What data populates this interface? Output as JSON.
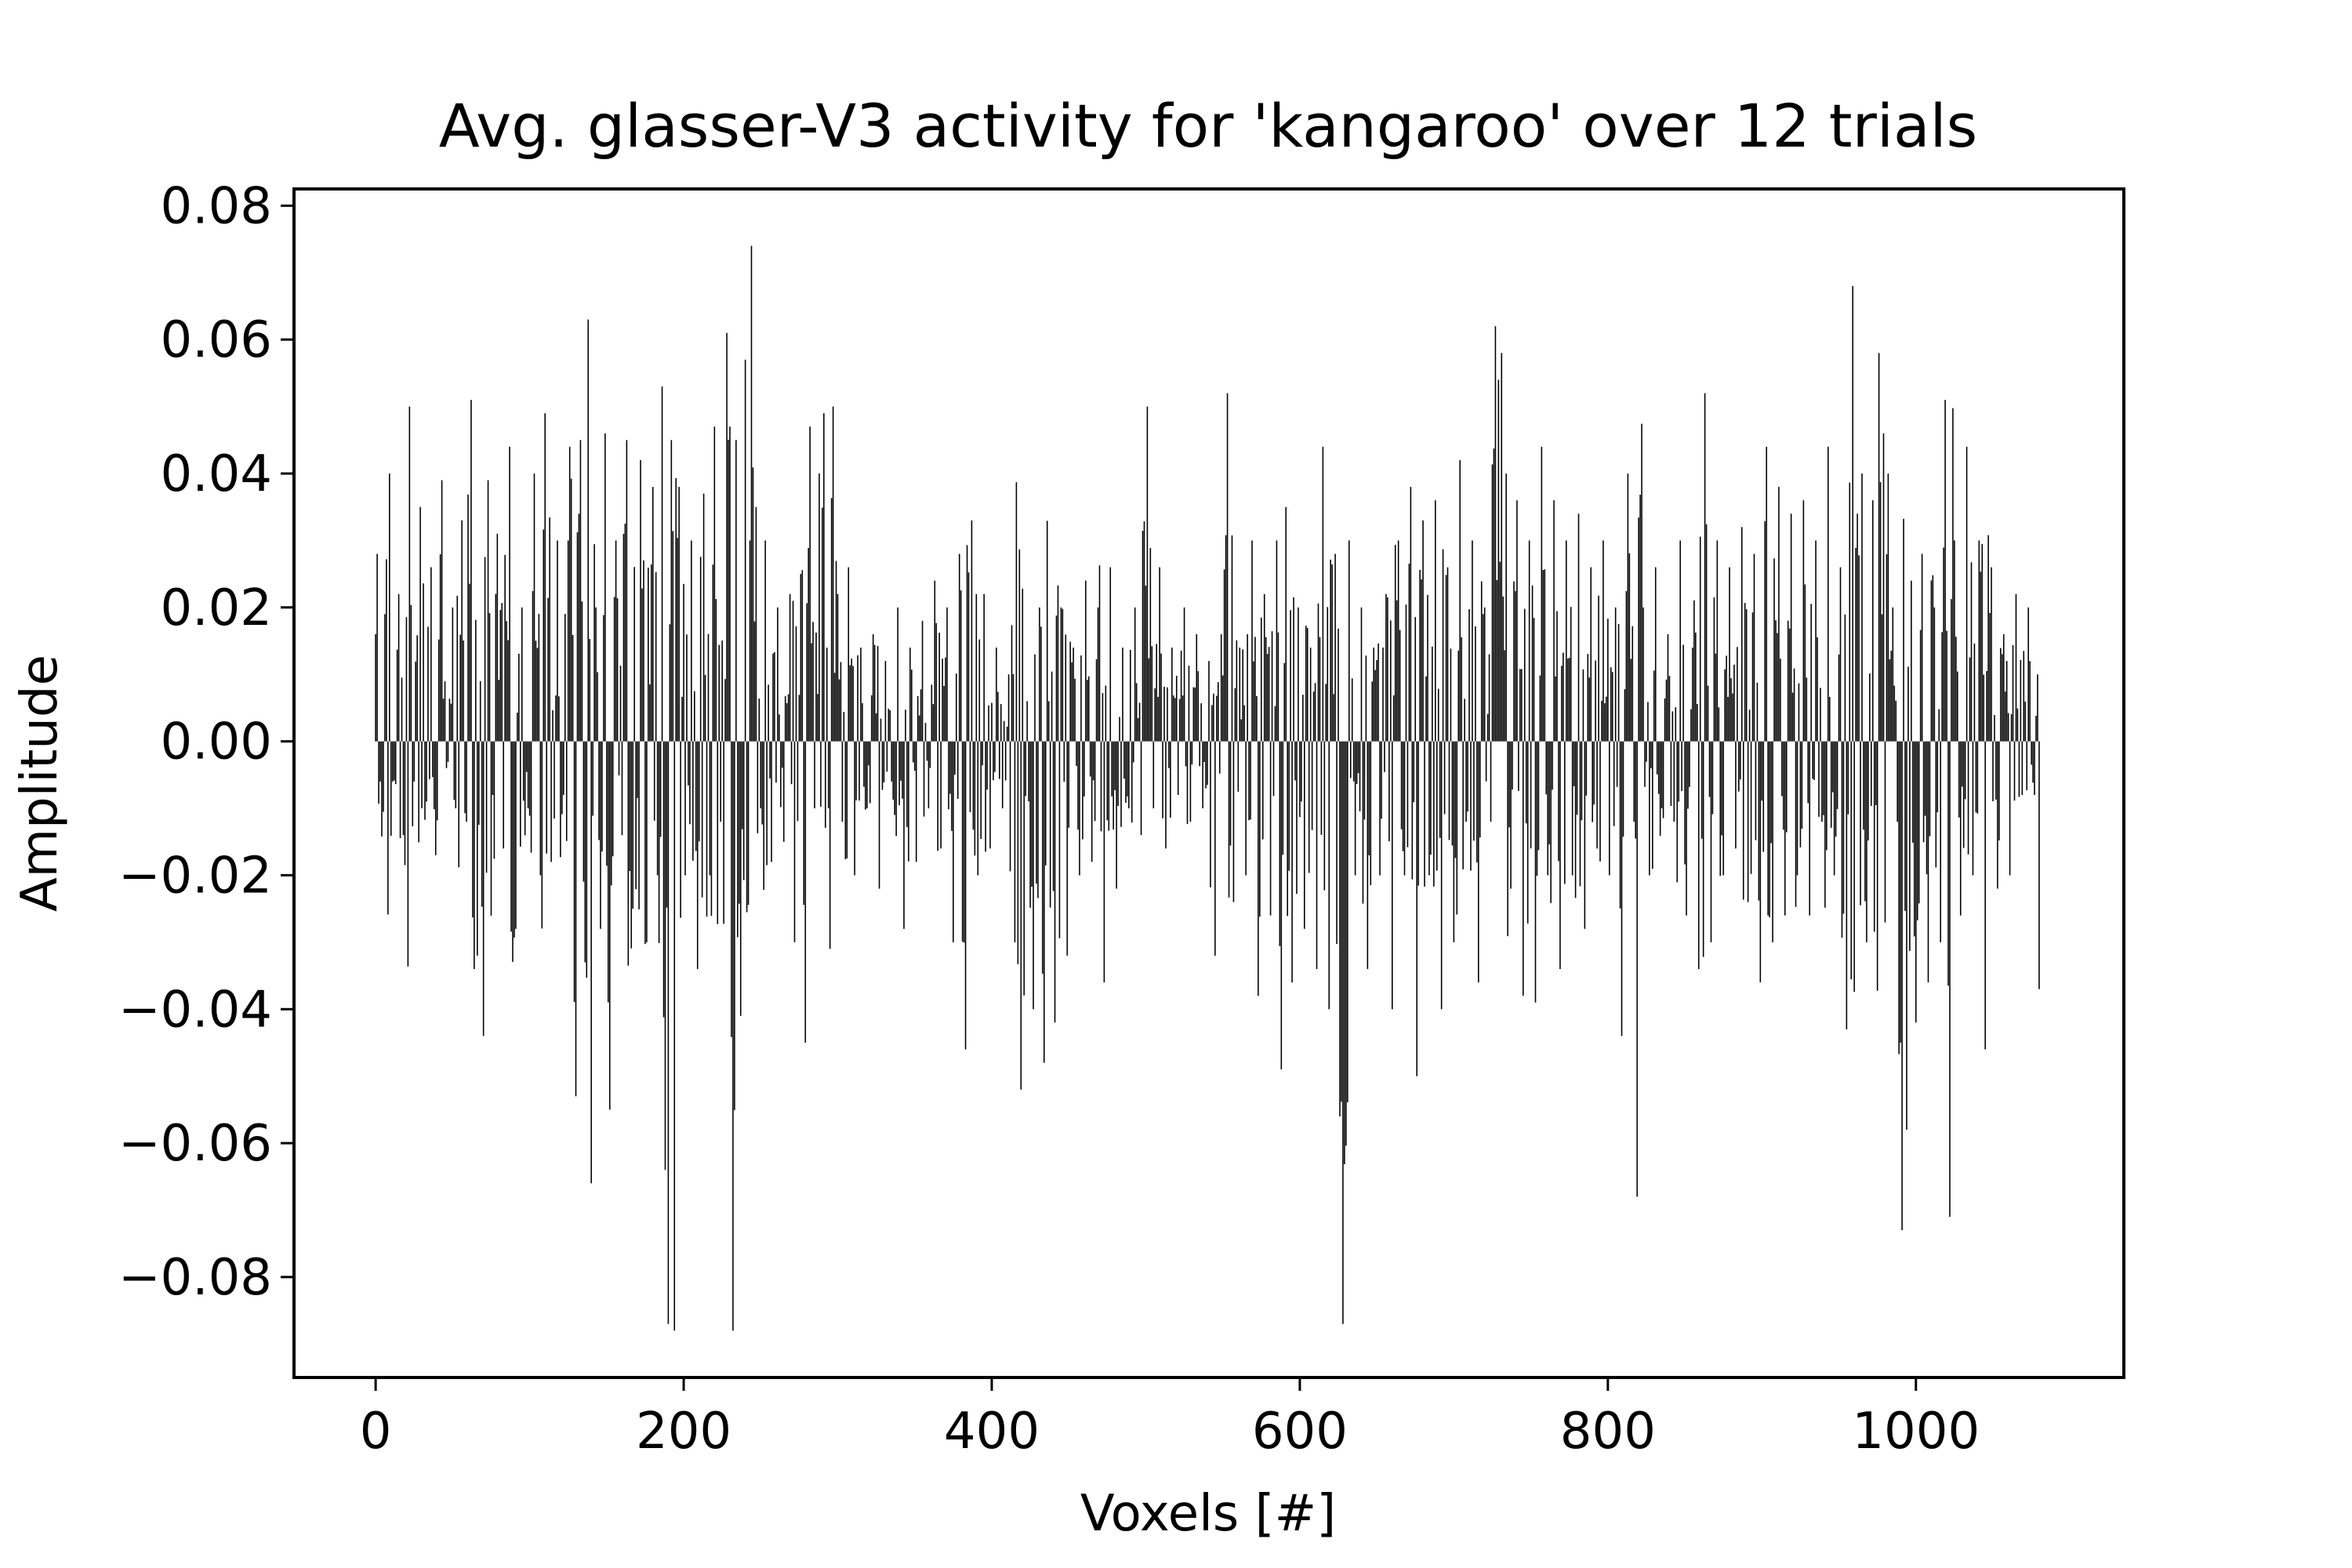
{
  "chart_data": {
    "type": "bar",
    "title": "Avg. glasser-V3 activity for 'kangaroo' over 12 trials",
    "xlabel": "Voxels [#]",
    "ylabel": "Amplitude",
    "xlim": [
      -53,
      1135
    ],
    "ylim": [
      -0.095,
      0.0825
    ],
    "xticks": [
      0,
      200,
      400,
      600,
      800,
      1000
    ],
    "xtick_labels": [
      "0",
      "200",
      "400",
      "600",
      "800",
      "1000"
    ],
    "yticks": [
      0.08,
      0.06,
      0.04,
      0.02,
      0.0,
      -0.02,
      -0.04,
      -0.06,
      -0.08
    ],
    "ytick_labels": [
      "0.08",
      "0.06",
      "0.04",
      "0.02",
      "0.00",
      "−0.02",
      "−0.04",
      "−0.06",
      "−0.08"
    ],
    "grid": false,
    "bar_color": "#000000",
    "n_voxels": 1081,
    "anchors": [
      [
        0,
        0.016
      ],
      [
        1,
        0.028
      ],
      [
        3,
        -0.006
      ],
      [
        6,
        0.019
      ],
      [
        9,
        0.04
      ],
      [
        11,
        -0.006
      ],
      [
        15,
        0.022
      ],
      [
        18,
        -0.014
      ],
      [
        22,
        0.05
      ],
      [
        25,
        -0.006
      ],
      [
        29,
        0.035
      ],
      [
        33,
        -0.009
      ],
      [
        36,
        0.026
      ],
      [
        39,
        -0.017
      ],
      [
        43,
        0.039
      ],
      [
        46,
        -0.004
      ],
      [
        50,
        0.02
      ],
      [
        52,
        -0.01
      ],
      [
        56,
        0.033
      ],
      [
        59,
        -0.012
      ],
      [
        62,
        0.051
      ],
      [
        64,
        -0.034
      ],
      [
        66,
        -0.032
      ],
      [
        68,
        0.009
      ],
      [
        70,
        -0.044
      ],
      [
        73,
        0.039
      ],
      [
        76,
        -0.008
      ],
      [
        79,
        0.031
      ],
      [
        83,
        -0.016
      ],
      [
        87,
        0.044
      ],
      [
        91,
        -0.028
      ],
      [
        95,
        0.02
      ],
      [
        99,
        -0.01
      ],
      [
        103,
        0.04
      ],
      [
        107,
        -0.02
      ],
      [
        110,
        0.049
      ],
      [
        114,
        -0.018
      ],
      [
        118,
        0.03
      ],
      [
        122,
        -0.008
      ],
      [
        126,
        0.044
      ],
      [
        130,
        -0.053
      ],
      [
        133,
        0.045
      ],
      [
        136,
        -0.033
      ],
      [
        138,
        0.063
      ],
      [
        140,
        -0.066
      ],
      [
        143,
        0.02
      ],
      [
        146,
        -0.028
      ],
      [
        149,
        0.046
      ],
      [
        152,
        -0.055
      ],
      [
        156,
        0.03
      ],
      [
        160,
        -0.014
      ],
      [
        163,
        0.045
      ],
      [
        167,
        -0.025
      ],
      [
        172,
        0.042
      ],
      [
        176,
        -0.03
      ],
      [
        180,
        0.038
      ],
      [
        183,
        -0.02
      ],
      [
        186,
        0.053
      ],
      [
        188,
        -0.064
      ],
      [
        190,
        -0.087
      ],
      [
        192,
        0.045
      ],
      [
        194,
        -0.088
      ],
      [
        197,
        0.038
      ],
      [
        201,
        -0.02
      ],
      [
        205,
        0.03
      ],
      [
        209,
        -0.034
      ],
      [
        213,
        0.037
      ],
      [
        217,
        -0.02
      ],
      [
        220,
        0.047
      ],
      [
        224,
        -0.012
      ],
      [
        228,
        0.061
      ],
      [
        230,
        0.047
      ],
      [
        232,
        -0.088
      ],
      [
        234,
        0.045
      ],
      [
        237,
        -0.041
      ],
      [
        240,
        0.057
      ],
      [
        243,
        0.03
      ],
      [
        244,
        0.074
      ],
      [
        247,
        0.035
      ],
      [
        250,
        -0.01
      ],
      [
        253,
        0.03
      ],
      [
        257,
        -0.018
      ],
      [
        261,
        0.02
      ],
      [
        265,
        -0.015
      ],
      [
        269,
        0.022
      ],
      [
        272,
        -0.03
      ],
      [
        276,
        0.025
      ],
      [
        279,
        -0.045
      ],
      [
        282,
        0.047
      ],
      [
        285,
        -0.01
      ],
      [
        288,
        0.04
      ],
      [
        291,
        0.049
      ],
      [
        294,
        -0.01
      ],
      [
        297,
        0.05
      ],
      [
        300,
        0.022
      ],
      [
        303,
        -0.012
      ],
      [
        307,
        0.026
      ],
      [
        311,
        -0.02
      ],
      [
        315,
        0.014
      ],
      [
        319,
        -0.01
      ],
      [
        323,
        0.016
      ],
      [
        327,
        -0.022
      ],
      [
        331,
        0.012
      ],
      [
        335,
        -0.006
      ],
      [
        339,
        0.02
      ],
      [
        343,
        -0.028
      ],
      [
        347,
        0.014
      ],
      [
        351,
        -0.018
      ],
      [
        355,
        0.018
      ],
      [
        359,
        -0.01
      ],
      [
        363,
        0.024
      ],
      [
        367,
        -0.016
      ],
      [
        371,
        0.02
      ],
      [
        375,
        -0.03
      ],
      [
        379,
        0.028
      ],
      [
        383,
        -0.046
      ],
      [
        387,
        0.033
      ],
      [
        391,
        -0.02
      ],
      [
        395,
        0.022
      ],
      [
        399,
        -0.016
      ],
      [
        403,
        0.014
      ],
      [
        407,
        -0.01
      ],
      [
        411,
        0.01
      ],
      [
        415,
        -0.03
      ],
      [
        419,
        -0.052
      ],
      [
        423,
        0.006
      ],
      [
        427,
        -0.04
      ],
      [
        431,
        0.02
      ],
      [
        434,
        -0.048
      ],
      [
        437,
        0.006
      ],
      [
        441,
        -0.042
      ],
      [
        445,
        0.02
      ],
      [
        449,
        -0.032
      ],
      [
        453,
        0.014
      ],
      [
        457,
        -0.02
      ],
      [
        461,
        0.024
      ],
      [
        465,
        -0.018
      ],
      [
        469,
        0.02
      ],
      [
        473,
        -0.036
      ],
      [
        477,
        0.026
      ],
      [
        481,
        -0.022
      ],
      [
        485,
        0.014
      ],
      [
        489,
        -0.01
      ],
      [
        493,
        0.02
      ],
      [
        497,
        -0.014
      ],
      [
        501,
        0.05
      ],
      [
        505,
        -0.01
      ],
      [
        509,
        0.026
      ],
      [
        513,
        -0.016
      ],
      [
        517,
        0.014
      ],
      [
        521,
        -0.008
      ],
      [
        525,
        0.02
      ],
      [
        529,
        -0.012
      ],
      [
        533,
        0.016
      ],
      [
        537,
        -0.01
      ],
      [
        541,
        0.012
      ],
      [
        545,
        -0.032
      ],
      [
        549,
        0.016
      ],
      [
        553,
        0.052
      ],
      [
        557,
        -0.024
      ],
      [
        561,
        0.014
      ],
      [
        565,
        -0.02
      ],
      [
        569,
        0.03
      ],
      [
        573,
        -0.038
      ],
      [
        577,
        0.022
      ],
      [
        581,
        -0.026
      ],
      [
        585,
        0.03
      ],
      [
        588,
        -0.049
      ],
      [
        591,
        0.035
      ],
      [
        595,
        -0.036
      ],
      [
        599,
        0.02
      ],
      [
        603,
        -0.028
      ],
      [
        607,
        0.014
      ],
      [
        611,
        -0.034
      ],
      [
        615,
        0.044
      ],
      [
        619,
        -0.04
      ],
      [
        623,
        0.028
      ],
      [
        626,
        -0.056
      ],
      [
        628,
        -0.087
      ],
      [
        632,
        0.03
      ],
      [
        636,
        -0.02
      ],
      [
        640,
        0.02
      ],
      [
        644,
        -0.034
      ],
      [
        648,
        0.014
      ],
      [
        652,
        -0.02
      ],
      [
        656,
        0.022
      ],
      [
        660,
        -0.04
      ],
      [
        664,
        0.03
      ],
      [
        668,
        -0.02
      ],
      [
        672,
        0.038
      ],
      [
        676,
        -0.05
      ],
      [
        680,
        0.033
      ],
      [
        684,
        -0.02
      ],
      [
        688,
        0.036
      ],
      [
        692,
        -0.04
      ],
      [
        696,
        0.026
      ],
      [
        700,
        -0.03
      ],
      [
        704,
        0.042
      ],
      [
        708,
        -0.012
      ],
      [
        712,
        0.03
      ],
      [
        716,
        -0.036
      ],
      [
        720,
        0.02
      ],
      [
        724,
        -0.012
      ],
      [
        727,
        0.062
      ],
      [
        729,
        0.054
      ],
      [
        731,
        0.058
      ],
      [
        734,
        0.04
      ],
      [
        737,
        -0.022
      ],
      [
        741,
        0.036
      ],
      [
        745,
        -0.038
      ],
      [
        749,
        0.03
      ],
      [
        753,
        -0.039
      ],
      [
        757,
        0.044
      ],
      [
        761,
        -0.02
      ],
      [
        765,
        0.036
      ],
      [
        769,
        -0.034
      ],
      [
        773,
        0.03
      ],
      [
        777,
        -0.02
      ],
      [
        781,
        0.034
      ],
      [
        785,
        -0.028
      ],
      [
        789,
        0.026
      ],
      [
        793,
        -0.016
      ],
      [
        797,
        0.03
      ],
      [
        801,
        -0.02
      ],
      [
        805,
        0.02
      ],
      [
        809,
        -0.044
      ],
      [
        813,
        0.04
      ],
      [
        817,
        -0.012
      ],
      [
        819,
        -0.068
      ],
      [
        823,
        0.02
      ],
      [
        827,
        -0.02
      ],
      [
        831,
        0.026
      ],
      [
        835,
        -0.01
      ],
      [
        839,
        0.016
      ],
      [
        843,
        -0.012
      ],
      [
        847,
        0.03
      ],
      [
        851,
        -0.026
      ],
      [
        855,
        0.014
      ],
      [
        859,
        -0.034
      ],
      [
        863,
        0.052
      ],
      [
        867,
        -0.03
      ],
      [
        871,
        0.03
      ],
      [
        875,
        -0.02
      ],
      [
        879,
        0.026
      ],
      [
        883,
        -0.016
      ],
      [
        887,
        0.032
      ],
      [
        891,
        -0.024
      ],
      [
        895,
        0.028
      ],
      [
        899,
        -0.036
      ],
      [
        903,
        0.044
      ],
      [
        907,
        -0.03
      ],
      [
        911,
        0.038
      ],
      [
        915,
        -0.026
      ],
      [
        919,
        0.034
      ],
      [
        923,
        -0.02
      ],
      [
        927,
        0.036
      ],
      [
        931,
        -0.026
      ],
      [
        935,
        0.03
      ],
      [
        939,
        -0.012
      ],
      [
        943,
        0.044
      ],
      [
        947,
        -0.02
      ],
      [
        951,
        0.026
      ],
      [
        955,
        -0.043
      ],
      [
        959,
        0.068
      ],
      [
        962,
        0.034
      ],
      [
        965,
        0.04
      ],
      [
        968,
        -0.03
      ],
      [
        972,
        0.036
      ],
      [
        976,
        0.058
      ],
      [
        979,
        0.046
      ],
      [
        982,
        0.04
      ],
      [
        985,
        0.02
      ],
      [
        988,
        -0.012
      ],
      [
        991,
        -0.073
      ],
      [
        994,
        -0.058
      ],
      [
        997,
        0.024
      ],
      [
        1000,
        -0.042
      ],
      [
        1004,
        0.028
      ],
      [
        1008,
        -0.036
      ],
      [
        1012,
        0.02
      ],
      [
        1016,
        -0.03
      ],
      [
        1019,
        0.051
      ],
      [
        1022,
        -0.071
      ],
      [
        1025,
        0.03
      ],
      [
        1029,
        -0.026
      ],
      [
        1033,
        0.044
      ],
      [
        1037,
        -0.02
      ],
      [
        1041,
        0.03
      ],
      [
        1045,
        -0.046
      ],
      [
        1049,
        0.026
      ],
      [
        1053,
        -0.022
      ],
      [
        1057,
        0.016
      ],
      [
        1061,
        -0.02
      ],
      [
        1065,
        0.022
      ],
      [
        1069,
        -0.008
      ],
      [
        1073,
        0.02
      ],
      [
        1077,
        -0.008
      ],
      [
        1079,
        0.01
      ],
      [
        1080,
        -0.037
      ]
    ]
  }
}
